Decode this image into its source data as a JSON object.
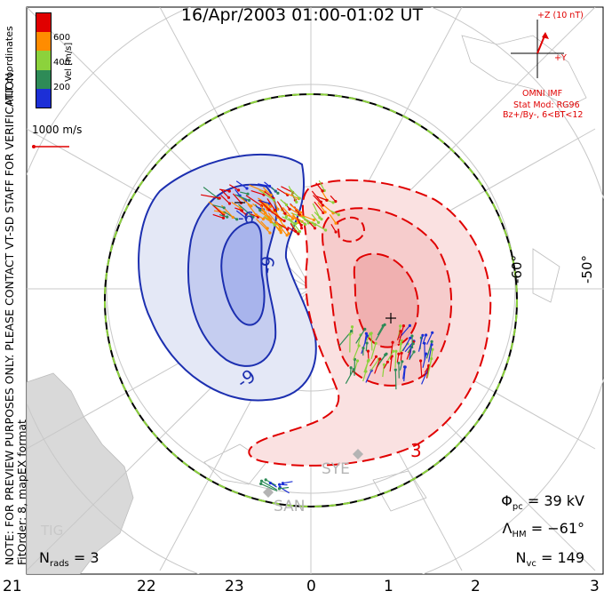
{
  "title": "16/Apr/2003 01:00-01:02 UT",
  "side_note_line1": "NOTE: FOR PREVIEW PURPOSES ONLY. PLEASE CONTACT VT-SD STAFF FOR VERIFICATION.",
  "side_note_line2": "FitOrder: 8, mapEX format",
  "mlt_coordinates_label": "MLT coordinates",
  "colorbar": {
    "label": "Vel [m/s]",
    "ticks": [
      "600",
      "400",
      "200"
    ],
    "colors": [
      "#e00000",
      "#ff8c00",
      "#8cd23c",
      "#2e8b57",
      "#1c2fd6"
    ]
  },
  "reference_vector_label": "1000 m/s",
  "imf": {
    "scale_label": "+Z (10 nT)",
    "y_label": "+Y",
    "source_label": "OMNI IMF",
    "stat_mod_label": "Stat Mod: RG96",
    "condition_label": "Bz+/By-, 6<BT<12"
  },
  "latitude_labels": [
    "-60°",
    "-50°"
  ],
  "mlt_labels": [
    "21",
    "22",
    "23",
    "0",
    "1",
    "2",
    "3"
  ],
  "contour_labels": [
    "-9",
    "-6",
    "3"
  ],
  "stations": [
    "SYE",
    "SAN",
    "TIG"
  ],
  "stats": {
    "nrads_label": "N",
    "nrads_sub": "rads",
    "nrads_value": "= 3",
    "phi_label": "Φ",
    "phi_sub": "pc",
    "phi_value": "= 39 kV",
    "lambda_label": "Λ",
    "lambda_sub": "HM",
    "lambda_value": "= −61°",
    "nvc_label": "N",
    "nvc_sub": "vc",
    "nvc_value": "= 149"
  },
  "colors": {
    "negative_cell": "#1c2fb0",
    "positive_cell": "#e00000",
    "hmb": "#8cd23c"
  }
}
